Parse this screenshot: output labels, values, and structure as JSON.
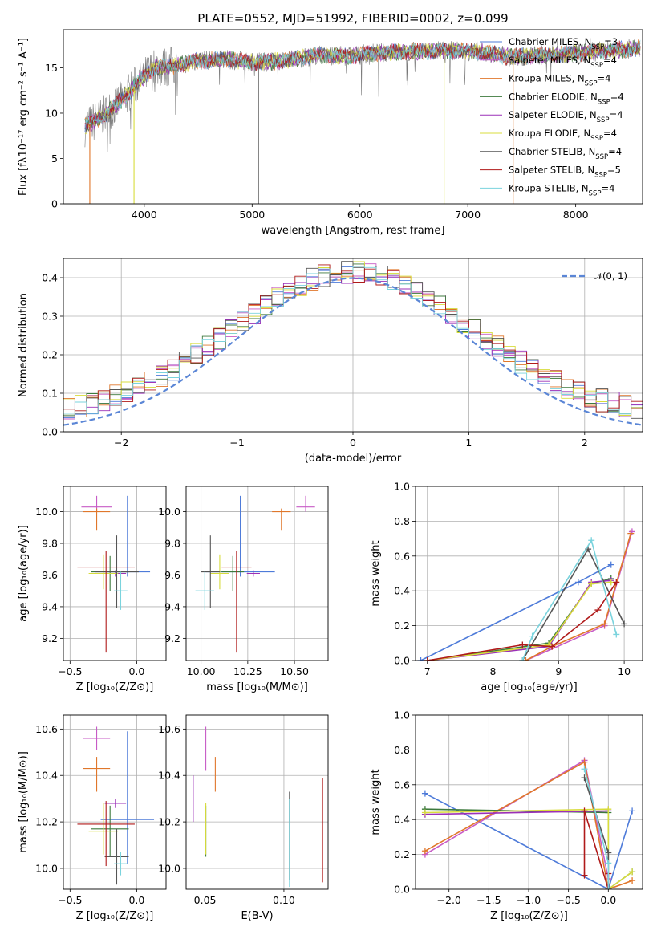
{
  "figure": {
    "title": "PLATE=0552, MJD=51992, FIBERID=0002, z=0.099"
  },
  "chart_data": [
    {
      "id": "spectrum",
      "type": "line",
      "xlabel": "wavelength [Angstrom, rest frame]",
      "ylabel": "Flux [fλ10⁻¹⁷ erg cm⁻² s⁻¹ A⁻¹]",
      "xlim": [
        3250,
        8620
      ],
      "ylim": [
        0,
        19.2
      ],
      "xticks": [
        4000,
        5000,
        6000,
        7000,
        8000
      ],
      "yticks": [
        0,
        5,
        10,
        15
      ],
      "grid": false,
      "legend_position": "right",
      "envelope": [
        [
          3450,
          8.5
        ],
        [
          3600,
          9.5
        ],
        [
          3800,
          11.5
        ],
        [
          3950,
          13.5
        ],
        [
          4100,
          15.0
        ],
        [
          4300,
          15.2
        ],
        [
          4500,
          15.8
        ],
        [
          4800,
          15.9
        ],
        [
          5000,
          15.6
        ],
        [
          5300,
          15.8
        ],
        [
          5600,
          16.4
        ],
        [
          5900,
          16.3
        ],
        [
          6200,
          16.7
        ],
        [
          6500,
          16.8
        ],
        [
          6800,
          16.9
        ],
        [
          7100,
          16.8
        ],
        [
          7400,
          16.2
        ],
        [
          7700,
          16.4
        ],
        [
          8000,
          16.6
        ],
        [
          8300,
          16.9
        ],
        [
          8600,
          17.2
        ]
      ],
      "spikes": [
        [
          3495,
          0
        ],
        [
          3905,
          0
        ],
        [
          5060,
          0
        ],
        [
          6780,
          0
        ],
        [
          7420,
          0
        ]
      ],
      "series": [
        {
          "name": "Chabrier MILES, N",
          "sub": "SSP",
          "tail": "=3",
          "color": "#4e7bd9"
        },
        {
          "name": "Salpeter MILES, N",
          "sub": "SSP",
          "tail": "=4",
          "color": "#c75bc6"
        },
        {
          "name": "Kroupa MILES, N",
          "sub": "SSP",
          "tail": "=4",
          "color": "#e0772b"
        },
        {
          "name": "Chabrier ELODIE, N",
          "sub": "SSP",
          "tail": "=4",
          "color": "#3d7a3d"
        },
        {
          "name": "Salpeter ELODIE, N",
          "sub": "SSP",
          "tail": "=4",
          "color": "#9b30b8"
        },
        {
          "name": "Kroupa ELODIE, N",
          "sub": "SSP",
          "tail": "=4",
          "color": "#d8dc3c"
        },
        {
          "name": "Chabrier STELIB, N",
          "sub": "SSP",
          "tail": "=4",
          "color": "#555555"
        },
        {
          "name": "Salpeter STELIB, N",
          "sub": "SSP",
          "tail": "=5",
          "color": "#b01a1a"
        },
        {
          "name": "Kroupa STELIB, N",
          "sub": "SSP",
          "tail": "=4",
          "color": "#7ad3dd"
        }
      ]
    },
    {
      "id": "residuals",
      "type": "line",
      "xlabel": "(data-model)/error",
      "ylabel": "Normed distribution",
      "xlim": [
        -2.5,
        2.5
      ],
      "ylim": [
        0,
        0.45
      ],
      "xticks": [
        -2,
        -1,
        0,
        1,
        2
      ],
      "xtick_labels": [
        "−2",
        "−1",
        "0",
        "1",
        "2"
      ],
      "yticks": [
        0.0,
        0.1,
        0.2,
        0.3,
        0.4
      ],
      "ytick_labels": [
        "0.0",
        "0.1",
        "0.2",
        "0.3",
        "0.4"
      ],
      "grid": true,
      "legend_position": "top-right",
      "gaussian_label": "𝒩(0, 1)",
      "gaussian_color": "#5b86d6",
      "hist_colors": [
        "#4e7bd9",
        "#c75bc6",
        "#e0772b",
        "#3d7a3d",
        "#9b30b8",
        "#d8dc3c",
        "#555555",
        "#b01a1a",
        "#7ad3dd"
      ]
    },
    {
      "id": "age-vs-Z",
      "type": "scatter",
      "xlabel": "Z [log₁₀(Z/Z⊙)]",
      "ylabel": "age  [log₁₀(age/yr)]",
      "xlim": [
        -0.55,
        0.22
      ],
      "ylim": [
        9.06,
        10.16
      ],
      "xticks": [
        -0.5,
        0.0
      ],
      "xtick_labels": [
        "−0.5",
        "0.0"
      ],
      "yticks": [
        9.2,
        9.4,
        9.6,
        9.8,
        10.0
      ],
      "ytick_labels": [
        "9.2",
        "9.4",
        "9.6",
        "9.8",
        "10.0"
      ],
      "grid": true,
      "points": [
        {
          "color": "#4e7bd9",
          "x": -0.07,
          "y": 9.62,
          "xerr": 0.34,
          "yerr": [
            0.03,
            0.48
          ]
        },
        {
          "color": "#c75bc6",
          "x": -0.3,
          "y": 10.03,
          "xerr": 0.23,
          "yerr": [
            0.03,
            0.07
          ]
        },
        {
          "color": "#e0772b",
          "x": -0.3,
          "y": 10.0,
          "xerr": 0.2,
          "yerr": [
            0.12,
            0.02
          ]
        },
        {
          "color": "#3d7a3d",
          "x": -0.2,
          "y": 9.62,
          "xerr": 0.28,
          "yerr": [
            0.12,
            0.1
          ]
        },
        {
          "color": "#9b30b8",
          "x": -0.16,
          "y": 9.61,
          "xerr": 0.16,
          "yerr": [
            0.02,
            0.02
          ]
        },
        {
          "color": "#d8dc3c",
          "x": -0.25,
          "y": 9.61,
          "xerr": 0.22,
          "yerr": [
            0.1,
            0.12
          ]
        },
        {
          "color": "#555555",
          "x": -0.15,
          "y": 9.62,
          "xerr": 0.33,
          "yerr": [
            0.23,
            0.23
          ]
        },
        {
          "color": "#b01a1a",
          "x": -0.23,
          "y": 9.65,
          "xerr": 0.43,
          "yerr": [
            0.54,
            0.1
          ]
        },
        {
          "color": "#7ad3dd",
          "x": -0.12,
          "y": 9.5,
          "xerr": 0.1,
          "yerr": [
            0.12,
            0.12
          ]
        }
      ]
    },
    {
      "id": "age-vs-mass",
      "type": "scatter",
      "xlabel": "mass [log₁₀(M/M⊙)]",
      "ylabel": "",
      "xlim": [
        9.92,
        10.68
      ],
      "ylim": [
        9.06,
        10.16
      ],
      "xticks": [
        10.0,
        10.25,
        10.5
      ],
      "xtick_labels": [
        "10.00",
        "10.25",
        "10.50"
      ],
      "yticks": [
        9.2,
        9.4,
        9.6,
        9.8,
        10.0
      ],
      "ytick_labels": [
        "9.2",
        "9.4",
        "9.6",
        "9.8",
        "10.0"
      ],
      "grid": true,
      "points": [
        {
          "color": "#4e7bd9",
          "x": 10.21,
          "y": 9.62,
          "xerr": 0.37,
          "yerr": [
            0.03,
            0.48
          ]
        },
        {
          "color": "#c75bc6",
          "x": 10.56,
          "y": 10.03,
          "xerr": 0.1,
          "yerr": [
            0.03,
            0.07
          ]
        },
        {
          "color": "#e0772b",
          "x": 10.43,
          "y": 10.0,
          "xerr": 0.1,
          "yerr": [
            0.12,
            0.02
          ]
        },
        {
          "color": "#3d7a3d",
          "x": 10.17,
          "y": 9.62,
          "xerr": 0.12,
          "yerr": [
            0.12,
            0.1
          ]
        },
        {
          "color": "#9b30b8",
          "x": 10.28,
          "y": 9.61,
          "xerr": 0.07,
          "yerr": [
            0.02,
            0.02
          ]
        },
        {
          "color": "#d8dc3c",
          "x": 10.1,
          "y": 9.61,
          "xerr": 0.1,
          "yerr": [
            0.1,
            0.12
          ]
        },
        {
          "color": "#555555",
          "x": 10.05,
          "y": 9.62,
          "xerr": 0.1,
          "yerr": [
            0.23,
            0.23
          ]
        },
        {
          "color": "#b01a1a",
          "x": 10.19,
          "y": 9.65,
          "xerr": 0.16,
          "yerr": [
            0.54,
            0.1
          ]
        },
        {
          "color": "#7ad3dd",
          "x": 10.02,
          "y": 9.5,
          "xerr": 0.1,
          "yerr": [
            0.12,
            0.12
          ]
        }
      ]
    },
    {
      "id": "weight-vs-age",
      "type": "line",
      "xlabel": "age  [log₁₀(age/yr)]",
      "ylabel": "mass weight",
      "xlim": [
        6.82,
        10.28
      ],
      "ylim": [
        0,
        1
      ],
      "xticks": [
        7,
        8,
        9,
        10
      ],
      "yticks": [
        0.0,
        0.2,
        0.4,
        0.6,
        0.8,
        1.0
      ],
      "ytick_labels": [
        "0.0",
        "0.2",
        "0.4",
        "0.6",
        "0.8",
        "1.0"
      ],
      "grid": true,
      "series": [
        {
          "color": "#4e7bd9",
          "x": [
            6.9,
            9.3,
            9.8
          ],
          "y": [
            0.0,
            0.45,
            0.55
          ]
        },
        {
          "color": "#c75bc6",
          "x": [
            8.5,
            9.7,
            10.12
          ],
          "y": [
            0.0,
            0.2,
            0.74
          ]
        },
        {
          "color": "#e0772b",
          "x": [
            8.5,
            8.9,
            9.7,
            10.1
          ],
          "y": [
            0.0,
            0.08,
            0.21,
            0.73
          ]
        },
        {
          "color": "#3d7a3d",
          "x": [
            7.0,
            8.85,
            9.5,
            9.8
          ],
          "y": [
            0.0,
            0.1,
            0.44,
            0.47
          ]
        },
        {
          "color": "#9b30b8",
          "x": [
            7.0,
            8.85,
            9.5,
            9.8
          ],
          "y": [
            0.0,
            0.08,
            0.45,
            0.46
          ]
        },
        {
          "color": "#d8dc3c",
          "x": [
            7.0,
            8.85,
            9.5,
            9.8
          ],
          "y": [
            0.0,
            0.09,
            0.44,
            0.45
          ]
        },
        {
          "color": "#555555",
          "x": [
            8.45,
            9.45,
            10.0
          ],
          "y": [
            0.0,
            0.64,
            0.21
          ]
        },
        {
          "color": "#b01a1a",
          "x": [
            7.0,
            8.45,
            8.9,
            9.6,
            9.88
          ],
          "y": [
            0.0,
            0.09,
            0.08,
            0.29,
            0.45
          ]
        },
        {
          "color": "#7ad3dd",
          "x": [
            8.45,
            8.6,
            9.5,
            9.88
          ],
          "y": [
            0.0,
            0.14,
            0.69,
            0.15
          ]
        }
      ]
    },
    {
      "id": "mass-vs-Z",
      "type": "scatter",
      "xlabel": "Z [log₁₀(Z/Z⊙)]",
      "ylabel": "mass [log₁₀(M/M⊙)]",
      "xlim": [
        -0.55,
        0.22
      ],
      "ylim": [
        9.91,
        10.66
      ],
      "xticks": [
        -0.5,
        0.0
      ],
      "xtick_labels": [
        "−0.5",
        "0.0"
      ],
      "yticks": [
        10.0,
        10.2,
        10.4,
        10.6
      ],
      "ytick_labels": [
        "10.0",
        "10.2",
        "10.4",
        "10.6"
      ],
      "grid": true,
      "points": [
        {
          "color": "#4e7bd9",
          "x": -0.07,
          "y": 10.21,
          "xerr": 0.4,
          "yerr": [
            0.19,
            0.38
          ]
        },
        {
          "color": "#c75bc6",
          "x": -0.3,
          "y": 10.56,
          "xerr": 0.2,
          "yerr": [
            0.05,
            0.05
          ]
        },
        {
          "color": "#e0772b",
          "x": -0.3,
          "y": 10.43,
          "xerr": 0.2,
          "yerr": [
            0.1,
            0.05
          ]
        },
        {
          "color": "#3d7a3d",
          "x": -0.2,
          "y": 10.17,
          "xerr": 0.28,
          "yerr": [
            0.12,
            0.1
          ]
        },
        {
          "color": "#9b30b8",
          "x": -0.16,
          "y": 10.28,
          "xerr": 0.16,
          "yerr": [
            0.02,
            0.02
          ]
        },
        {
          "color": "#d8dc3c",
          "x": -0.25,
          "y": 10.16,
          "xerr": 0.22,
          "yerr": [
            0.1,
            0.12
          ]
        },
        {
          "color": "#555555",
          "x": -0.15,
          "y": 10.05,
          "xerr": 0.18,
          "yerr": [
            0.12,
            0.12
          ]
        },
        {
          "color": "#b01a1a",
          "x": -0.23,
          "y": 10.19,
          "xerr": 0.43,
          "yerr": [
            0.18,
            0.1
          ]
        },
        {
          "color": "#7ad3dd",
          "x": -0.12,
          "y": 10.02,
          "xerr": 0.1,
          "yerr": [
            0.05,
            0.05
          ]
        }
      ]
    },
    {
      "id": "mass-vs-EBV",
      "type": "scatter",
      "xlabel": "E(B-V)",
      "ylabel": "",
      "xlim": [
        0.038,
        0.128
      ],
      "ylim": [
        9.91,
        10.66
      ],
      "xticks": [
        0.05,
        0.1
      ],
      "xtick_labels": [
        "0.05",
        "0.10"
      ],
      "yticks": [
        10.0,
        10.2,
        10.4,
        10.6
      ],
      "ytick_labels": [
        "10.0",
        "10.2",
        "10.4",
        "10.6"
      ],
      "grid": true,
      "points": [
        {
          "color": "#c75bc6",
          "x": 0.0505,
          "y": 10.56,
          "xerr": 0.0,
          "yerr": [
            0.14,
            0.05
          ]
        },
        {
          "color": "#e0772b",
          "x": 0.0565,
          "y": 10.43,
          "xerr": 0.0,
          "yerr": [
            0.1,
            0.05
          ]
        },
        {
          "color": "#9b30b8",
          "x": 0.0425,
          "y": 10.3,
          "xerr": 0.0,
          "yerr": [
            0.1,
            0.1
          ]
        },
        {
          "color": "#3d7a3d",
          "x": 0.0505,
          "y": 10.17,
          "xerr": 0.0,
          "yerr": [
            0.12,
            0.1
          ]
        },
        {
          "color": "#d8dc3c",
          "x": 0.0505,
          "y": 10.16,
          "xerr": 0.0,
          "yerr": [
            0.1,
            0.12
          ]
        },
        {
          "color": "#555555",
          "x": 0.1035,
          "y": 10.05,
          "xerr": 0.0,
          "yerr": [
            0.1,
            0.28
          ]
        },
        {
          "color": "#7ad3dd",
          "x": 0.1035,
          "y": 10.02,
          "xerr": 0.0,
          "yerr": [
            0.1,
            0.28
          ]
        },
        {
          "color": "#b01a1a",
          "x": 0.1245,
          "y": 10.19,
          "xerr": 0.0,
          "yerr": [
            0.25,
            0.2
          ]
        }
      ]
    },
    {
      "id": "weight-vs-Z",
      "type": "line",
      "xlabel": "Z [log₁₀(Z/Z⊙)]",
      "ylabel": "mass weight",
      "xlim": [
        -2.42,
        0.43
      ],
      "ylim": [
        0,
        1
      ],
      "xticks": [
        -2.0,
        -1.5,
        -1.0,
        -0.5,
        0.0
      ],
      "xtick_labels": [
        "−2.0",
        "−1.5",
        "−1.0",
        "−0.5",
        "0.0"
      ],
      "yticks": [
        0.0,
        0.2,
        0.4,
        0.6,
        0.8,
        1.0
      ],
      "ytick_labels": [
        "0.0",
        "0.2",
        "0.4",
        "0.6",
        "0.8",
        "1.0"
      ],
      "grid": true,
      "series": [
        {
          "color": "#4e7bd9",
          "x": [
            -2.3,
            0.0,
            0.3
          ],
          "y": [
            0.55,
            0.0,
            0.45
          ]
        },
        {
          "color": "#c75bc6",
          "x": [
            -2.3,
            -0.3,
            0.0
          ],
          "y": [
            0.2,
            0.74,
            0.06
          ]
        },
        {
          "color": "#e0772b",
          "x": [
            -2.3,
            -0.3,
            0.0,
            0.3
          ],
          "y": [
            0.22,
            0.73,
            0.0,
            0.05
          ]
        },
        {
          "color": "#3d7a3d",
          "x": [
            -2.3,
            0.0,
            0.0,
            0.3
          ],
          "y": [
            0.46,
            0.44,
            0.0,
            0.1
          ]
        },
        {
          "color": "#9b30b8",
          "x": [
            -2.3,
            0.0
          ],
          "y": [
            0.43,
            0.45
          ]
        },
        {
          "color": "#d8dc3c",
          "x": [
            -2.3,
            0.0,
            0.0,
            0.3
          ],
          "y": [
            0.44,
            0.46,
            0.0,
            0.1
          ]
        },
        {
          "color": "#555555",
          "x": [
            -0.3,
            0.0,
            0.0
          ],
          "y": [
            0.64,
            0.21,
            0.0
          ]
        },
        {
          "color": "#b01a1a",
          "x": [
            -0.3,
            -0.3,
            0.0,
            0.0
          ],
          "y": [
            0.08,
            0.45,
            0.0,
            0.09
          ]
        },
        {
          "color": "#7ad3dd",
          "x": [
            -0.3,
            0.0,
            0.0
          ],
          "y": [
            0.69,
            0.15,
            0.0
          ]
        }
      ]
    }
  ]
}
